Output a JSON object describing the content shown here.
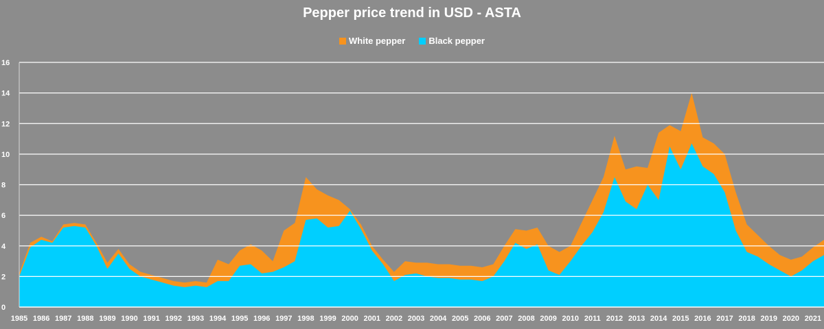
{
  "chart_data": {
    "type": "area",
    "title": "Pepper price trend in USD - ASTA",
    "xlabel": "",
    "ylabel": "",
    "ylim": [
      0,
      16
    ],
    "yticks": [
      0,
      2,
      4,
      6,
      8,
      10,
      12,
      14,
      16
    ],
    "grid": true,
    "legend_position": "top-center",
    "stacked": true,
    "x_tick_labels": [
      "1985",
      "1986",
      "1987",
      "1988",
      "1989",
      "1990",
      "1991",
      "1992",
      "1993",
      "1994",
      "1995",
      "1996",
      "1997",
      "1998",
      "1999",
      "2000",
      "2001",
      "2002",
      "2003",
      "2004",
      "2005",
      "2006",
      "2007",
      "2008",
      "2009",
      "2010",
      "2011",
      "2012",
      "2013",
      "2014",
      "2015",
      "2016",
      "2017",
      "2018",
      "2019",
      "2020",
      "2021"
    ],
    "x": [
      1985.0,
      1985.5,
      1986.0,
      1986.5,
      1987.0,
      1987.5,
      1988.0,
      1988.5,
      1989.0,
      1989.5,
      1990.0,
      1990.5,
      1991.0,
      1991.5,
      1992.0,
      1992.5,
      1993.0,
      1993.5,
      1994.0,
      1994.5,
      1995.0,
      1995.5,
      1996.0,
      1996.5,
      1997.0,
      1997.5,
      1998.0,
      1998.5,
      1999.0,
      1999.5,
      2000.0,
      2000.5,
      2001.0,
      2001.5,
      2002.0,
      2002.5,
      2003.0,
      2003.5,
      2004.0,
      2004.5,
      2005.0,
      2005.5,
      2006.0,
      2006.5,
      2007.0,
      2007.5,
      2008.0,
      2008.5,
      2009.0,
      2009.5,
      2010.0,
      2010.5,
      2011.0,
      2011.5,
      2012.0,
      2012.5,
      2013.0,
      2013.5,
      2014.0,
      2014.5,
      2015.0,
      2015.5,
      2016.0,
      2016.5,
      2017.0,
      2017.5,
      2018.0,
      2018.5,
      2019.0,
      2019.5,
      2020.0,
      2020.5,
      2021.0,
      2021.5
    ],
    "series": [
      {
        "name": "Black pepper",
        "color": "#00cfff",
        "values": [
          2.0,
          3.9,
          4.4,
          4.2,
          5.2,
          5.3,
          5.2,
          4.0,
          2.5,
          3.5,
          2.5,
          2.0,
          1.8,
          1.6,
          1.4,
          1.3,
          1.4,
          1.3,
          1.7,
          1.7,
          2.7,
          2.8,
          2.2,
          2.3,
          2.6,
          3.0,
          5.7,
          5.8,
          5.2,
          5.3,
          6.3,
          5.1,
          3.7,
          2.8,
          1.7,
          2.1,
          2.2,
          2.0,
          1.9,
          1.9,
          1.8,
          1.8,
          1.7,
          2.0,
          3.0,
          4.2,
          3.8,
          4.1,
          2.4,
          2.1,
          3.0,
          4.0,
          4.9,
          6.2,
          8.5,
          6.9,
          6.4,
          8.0,
          7.0,
          10.5,
          9.0,
          10.7,
          9.2,
          8.7,
          7.5,
          5.0,
          3.6,
          3.3,
          2.8,
          2.4,
          2.0,
          2.4,
          3.0,
          3.4
        ]
      },
      {
        "name": "White pepper",
        "color": "#f7931e",
        "values": [
          0.2,
          0.3,
          0.2,
          0.1,
          0.2,
          0.2,
          0.2,
          0.2,
          0.4,
          0.3,
          0.3,
          0.3,
          0.3,
          0.3,
          0.3,
          0.3,
          0.3,
          0.3,
          1.4,
          1.1,
          1.0,
          1.3,
          1.5,
          0.7,
          2.4,
          2.5,
          2.8,
          1.9,
          2.1,
          1.7,
          0.1,
          0.3,
          0.3,
          0.3,
          0.6,
          0.9,
          0.7,
          0.9,
          0.9,
          0.9,
          0.9,
          0.9,
          0.9,
          0.8,
          1.0,
          0.9,
          1.2,
          1.1,
          1.6,
          1.5,
          1.0,
          1.5,
          2.1,
          2.3,
          2.7,
          2.1,
          2.8,
          1.1,
          4.4,
          1.4,
          2.5,
          3.3,
          1.9,
          2.0,
          2.5,
          2.5,
          1.8,
          1.4,
          1.2,
          1.0,
          1.1,
          0.9,
          0.9,
          1.0
        ]
      }
    ]
  }
}
